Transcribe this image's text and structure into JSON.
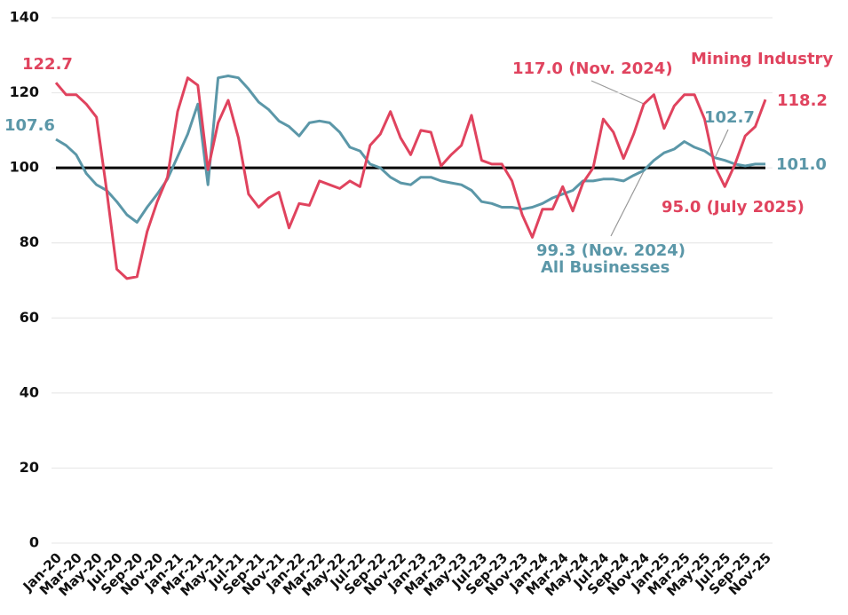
{
  "chart_data": {
    "type": "line",
    "categories": [
      "Jan-20",
      null,
      "Mar-20",
      null,
      "May-20",
      null,
      "Jul-20",
      null,
      "Sep-20",
      null,
      "Nov-20",
      null,
      "Jan-21",
      null,
      "Mar-21",
      null,
      "May-21",
      null,
      "Jul-21",
      null,
      "Sep-21",
      null,
      "Nov-21",
      null,
      "Jan-22",
      null,
      "Mar-22",
      null,
      "May-22",
      null,
      "Jul-22",
      null,
      "Sep-22",
      null,
      "Nov-22",
      null,
      "Jan-23",
      null,
      "Mar-23",
      null,
      "May-23",
      null,
      "Jul-23",
      null,
      "Sep-23",
      null,
      "Nov-23",
      null,
      "Jan-24",
      null,
      "Mar-24",
      null,
      "May-24",
      null,
      "Jul-24",
      null,
      "Sep-24",
      null,
      "Nov-24",
      null,
      "Jan-25",
      null,
      "Mar-25",
      null,
      "May-25",
      null,
      "Jul-25",
      null,
      "Sep-25",
      null,
      "Nov-25"
    ],
    "series": [
      {
        "name": "Mining Industry",
        "color": "#e0435e",
        "values": [
          122.7,
          119.5,
          119.5,
          117,
          113.5,
          94,
          73,
          70.5,
          71,
          83,
          91,
          97.5,
          115,
          124,
          122,
          99.5,
          112,
          118,
          108,
          93,
          89.5,
          92,
          93.5,
          84,
          90.5,
          90,
          96.5,
          95.5,
          94.5,
          96.5,
          95,
          106,
          109,
          115,
          108,
          103.5,
          110,
          109.5,
          100.5,
          103.5,
          106,
          114,
          102,
          101,
          101,
          96.5,
          87.5,
          81.5,
          89,
          89,
          95,
          88.5,
          96,
          100,
          113,
          109.5,
          102.5,
          109,
          117,
          119.5,
          110.5,
          116.5,
          119.5,
          119.5,
          113,
          100.5,
          95,
          101,
          108.5,
          111,
          118.2
        ]
      },
      {
        "name": "All Businesses",
        "color": "#5b97a8",
        "values": [
          107.6,
          106,
          103.5,
          98.5,
          95.5,
          94,
          91,
          87.5,
          85.5,
          89.5,
          93,
          97,
          103,
          109,
          117,
          95.5,
          124,
          124.5,
          124,
          121,
          117.5,
          115.5,
          112.5,
          111,
          108.5,
          112,
          112.5,
          112,
          109.5,
          105.5,
          104.5,
          101,
          100,
          97.5,
          96,
          95.5,
          97.5,
          97.5,
          96.5,
          96,
          95.5,
          94,
          91,
          90.5,
          89.5,
          89.5,
          89,
          89.5,
          90.5,
          92,
          93,
          94,
          96.5,
          96.5,
          97,
          97,
          96.5,
          98,
          99.3,
          102,
          104,
          105,
          107,
          105.5,
          104.5,
          102.7,
          102,
          101,
          100.5,
          101,
          101.0
        ]
      }
    ],
    "baseline": 100,
    "annotations": [
      {
        "text": "122.7",
        "color": "#e0435e"
      },
      {
        "text": "107.6",
        "color": "#5b97a8"
      },
      {
        "text": "117.0 (Nov. 2024)",
        "color": "#e0435e"
      },
      {
        "text": "118.2",
        "color": "#e0435e"
      },
      {
        "text": "102.7",
        "color": "#5b97a8"
      },
      {
        "text": "101.0",
        "color": "#5b97a8"
      },
      {
        "text": "95.0 (July 2025)",
        "color": "#e0435e"
      },
      {
        "text": "99.3 (Nov. 2024)",
        "color": "#5b97a8"
      }
    ],
    "ylim": [
      0,
      140
    ],
    "yticks": [
      0,
      20,
      40,
      60,
      80,
      100,
      120,
      140
    ],
    "grid": true
  }
}
